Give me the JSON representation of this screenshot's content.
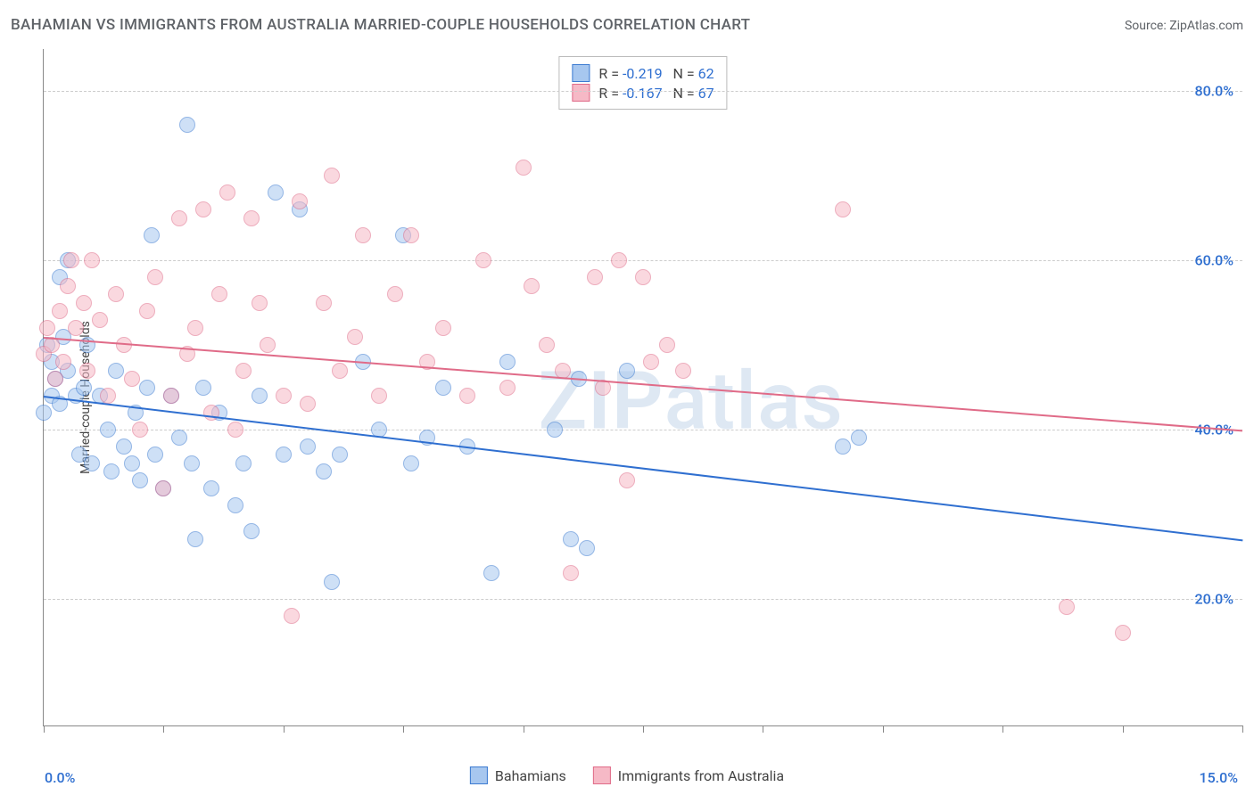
{
  "title": "BAHAMIAN VS IMMIGRANTS FROM AUSTRALIA MARRIED-COUPLE HOUSEHOLDS CORRELATION CHART",
  "source_label": "Source: ZipAtlas.com",
  "ylabel": "Married-couple Households",
  "watermark_bold": "ZIP",
  "watermark_rest": "atlas",
  "chart": {
    "type": "scatter",
    "xlim": [
      0,
      15
    ],
    "ylim": [
      5,
      85
    ],
    "x_tick_positions": [
      0,
      1.5,
      3.0,
      4.5,
      6.0,
      7.5,
      9.0,
      10.5,
      12.0,
      13.5,
      15.0
    ],
    "x_label_min": "0.0%",
    "x_label_max": "15.0%",
    "x_label_color": "#2f6fd0",
    "y_gridlines": [
      20,
      40,
      60,
      80
    ],
    "y_tick_labels": [
      "20.0%",
      "40.0%",
      "60.0%",
      "80.0%"
    ],
    "y_tick_color": "#2f6fd0",
    "grid_color": "#cccccc",
    "axis_color": "#888888",
    "background_color": "#ffffff",
    "point_radius": 9,
    "point_opacity": 0.55,
    "series": [
      {
        "name": "Bahamians",
        "fill": "#a7c7ef",
        "stroke": "#3c7bd1",
        "R": "-0.219",
        "N": "62",
        "trend": {
          "x1": 0,
          "y1": 44,
          "x2": 15,
          "y2": 27,
          "color": "#2f6fd0",
          "width": 2
        },
        "points": [
          [
            0.0,
            42
          ],
          [
            0.05,
            50
          ],
          [
            0.1,
            44
          ],
          [
            0.1,
            48
          ],
          [
            0.15,
            46
          ],
          [
            0.2,
            58
          ],
          [
            0.2,
            43
          ],
          [
            0.25,
            51
          ],
          [
            0.3,
            47
          ],
          [
            0.3,
            60
          ],
          [
            0.4,
            44
          ],
          [
            0.45,
            37
          ],
          [
            0.5,
            45
          ],
          [
            0.55,
            50
          ],
          [
            0.6,
            36
          ],
          [
            0.7,
            44
          ],
          [
            0.8,
            40
          ],
          [
            0.85,
            35
          ],
          [
            0.9,
            47
          ],
          [
            1.0,
            38
          ],
          [
            1.1,
            36
          ],
          [
            1.15,
            42
          ],
          [
            1.2,
            34
          ],
          [
            1.3,
            45
          ],
          [
            1.35,
            63
          ],
          [
            1.4,
            37
          ],
          [
            1.5,
            33
          ],
          [
            1.6,
            44
          ],
          [
            1.7,
            39
          ],
          [
            1.8,
            76
          ],
          [
            1.85,
            36
          ],
          [
            1.9,
            27
          ],
          [
            2.0,
            45
          ],
          [
            2.1,
            33
          ],
          [
            2.2,
            42
          ],
          [
            2.4,
            31
          ],
          [
            2.5,
            36
          ],
          [
            2.6,
            28
          ],
          [
            2.7,
            44
          ],
          [
            2.9,
            68
          ],
          [
            3.0,
            37
          ],
          [
            3.2,
            66
          ],
          [
            3.3,
            38
          ],
          [
            3.5,
            35
          ],
          [
            3.6,
            22
          ],
          [
            3.7,
            37
          ],
          [
            4.0,
            48
          ],
          [
            4.2,
            40
          ],
          [
            4.5,
            63
          ],
          [
            4.6,
            36
          ],
          [
            4.8,
            39
          ],
          [
            5.0,
            45
          ],
          [
            5.3,
            38
          ],
          [
            5.6,
            23
          ],
          [
            5.8,
            48
          ],
          [
            6.4,
            40
          ],
          [
            6.6,
            27
          ],
          [
            6.7,
            46
          ],
          [
            6.8,
            26
          ],
          [
            7.3,
            47
          ],
          [
            10.0,
            38
          ],
          [
            10.2,
            39
          ]
        ]
      },
      {
        "name": "Immigrants from Australia",
        "fill": "#f6b9c6",
        "stroke": "#e06b88",
        "R": "-0.167",
        "N": "67",
        "trend": {
          "x1": 0,
          "y1": 51,
          "x2": 15,
          "y2": 40,
          "color": "#e06b88",
          "width": 2
        },
        "points": [
          [
            0.0,
            49
          ],
          [
            0.05,
            52
          ],
          [
            0.1,
            50
          ],
          [
            0.15,
            46
          ],
          [
            0.2,
            54
          ],
          [
            0.25,
            48
          ],
          [
            0.3,
            57
          ],
          [
            0.35,
            60
          ],
          [
            0.4,
            52
          ],
          [
            0.5,
            55
          ],
          [
            0.55,
            47
          ],
          [
            0.6,
            60
          ],
          [
            0.7,
            53
          ],
          [
            0.8,
            44
          ],
          [
            0.9,
            56
          ],
          [
            1.0,
            50
          ],
          [
            1.1,
            46
          ],
          [
            1.2,
            40
          ],
          [
            1.3,
            54
          ],
          [
            1.4,
            58
          ],
          [
            1.5,
            33
          ],
          [
            1.6,
            44
          ],
          [
            1.7,
            65
          ],
          [
            1.8,
            49
          ],
          [
            1.9,
            52
          ],
          [
            2.0,
            66
          ],
          [
            2.1,
            42
          ],
          [
            2.2,
            56
          ],
          [
            2.3,
            68
          ],
          [
            2.4,
            40
          ],
          [
            2.5,
            47
          ],
          [
            2.6,
            65
          ],
          [
            2.7,
            55
          ],
          [
            2.8,
            50
          ],
          [
            3.0,
            44
          ],
          [
            3.1,
            18
          ],
          [
            3.2,
            67
          ],
          [
            3.3,
            43
          ],
          [
            3.5,
            55
          ],
          [
            3.6,
            70
          ],
          [
            3.7,
            47
          ],
          [
            3.9,
            51
          ],
          [
            4.0,
            63
          ],
          [
            4.2,
            44
          ],
          [
            4.4,
            56
          ],
          [
            4.6,
            63
          ],
          [
            4.8,
            48
          ],
          [
            5.0,
            52
          ],
          [
            5.3,
            44
          ],
          [
            5.5,
            60
          ],
          [
            5.8,
            45
          ],
          [
            6.0,
            71
          ],
          [
            6.1,
            57
          ],
          [
            6.3,
            50
          ],
          [
            6.5,
            47
          ],
          [
            6.6,
            23
          ],
          [
            6.9,
            58
          ],
          [
            7.0,
            45
          ],
          [
            7.2,
            60
          ],
          [
            7.3,
            34
          ],
          [
            7.5,
            58
          ],
          [
            7.8,
            50
          ],
          [
            8.0,
            47
          ],
          [
            10.0,
            66
          ],
          [
            12.8,
            19
          ],
          [
            13.5,
            16
          ],
          [
            7.6,
            48
          ]
        ]
      }
    ],
    "legend_labels": [
      "Bahamians",
      "Immigrants from Australia"
    ]
  }
}
